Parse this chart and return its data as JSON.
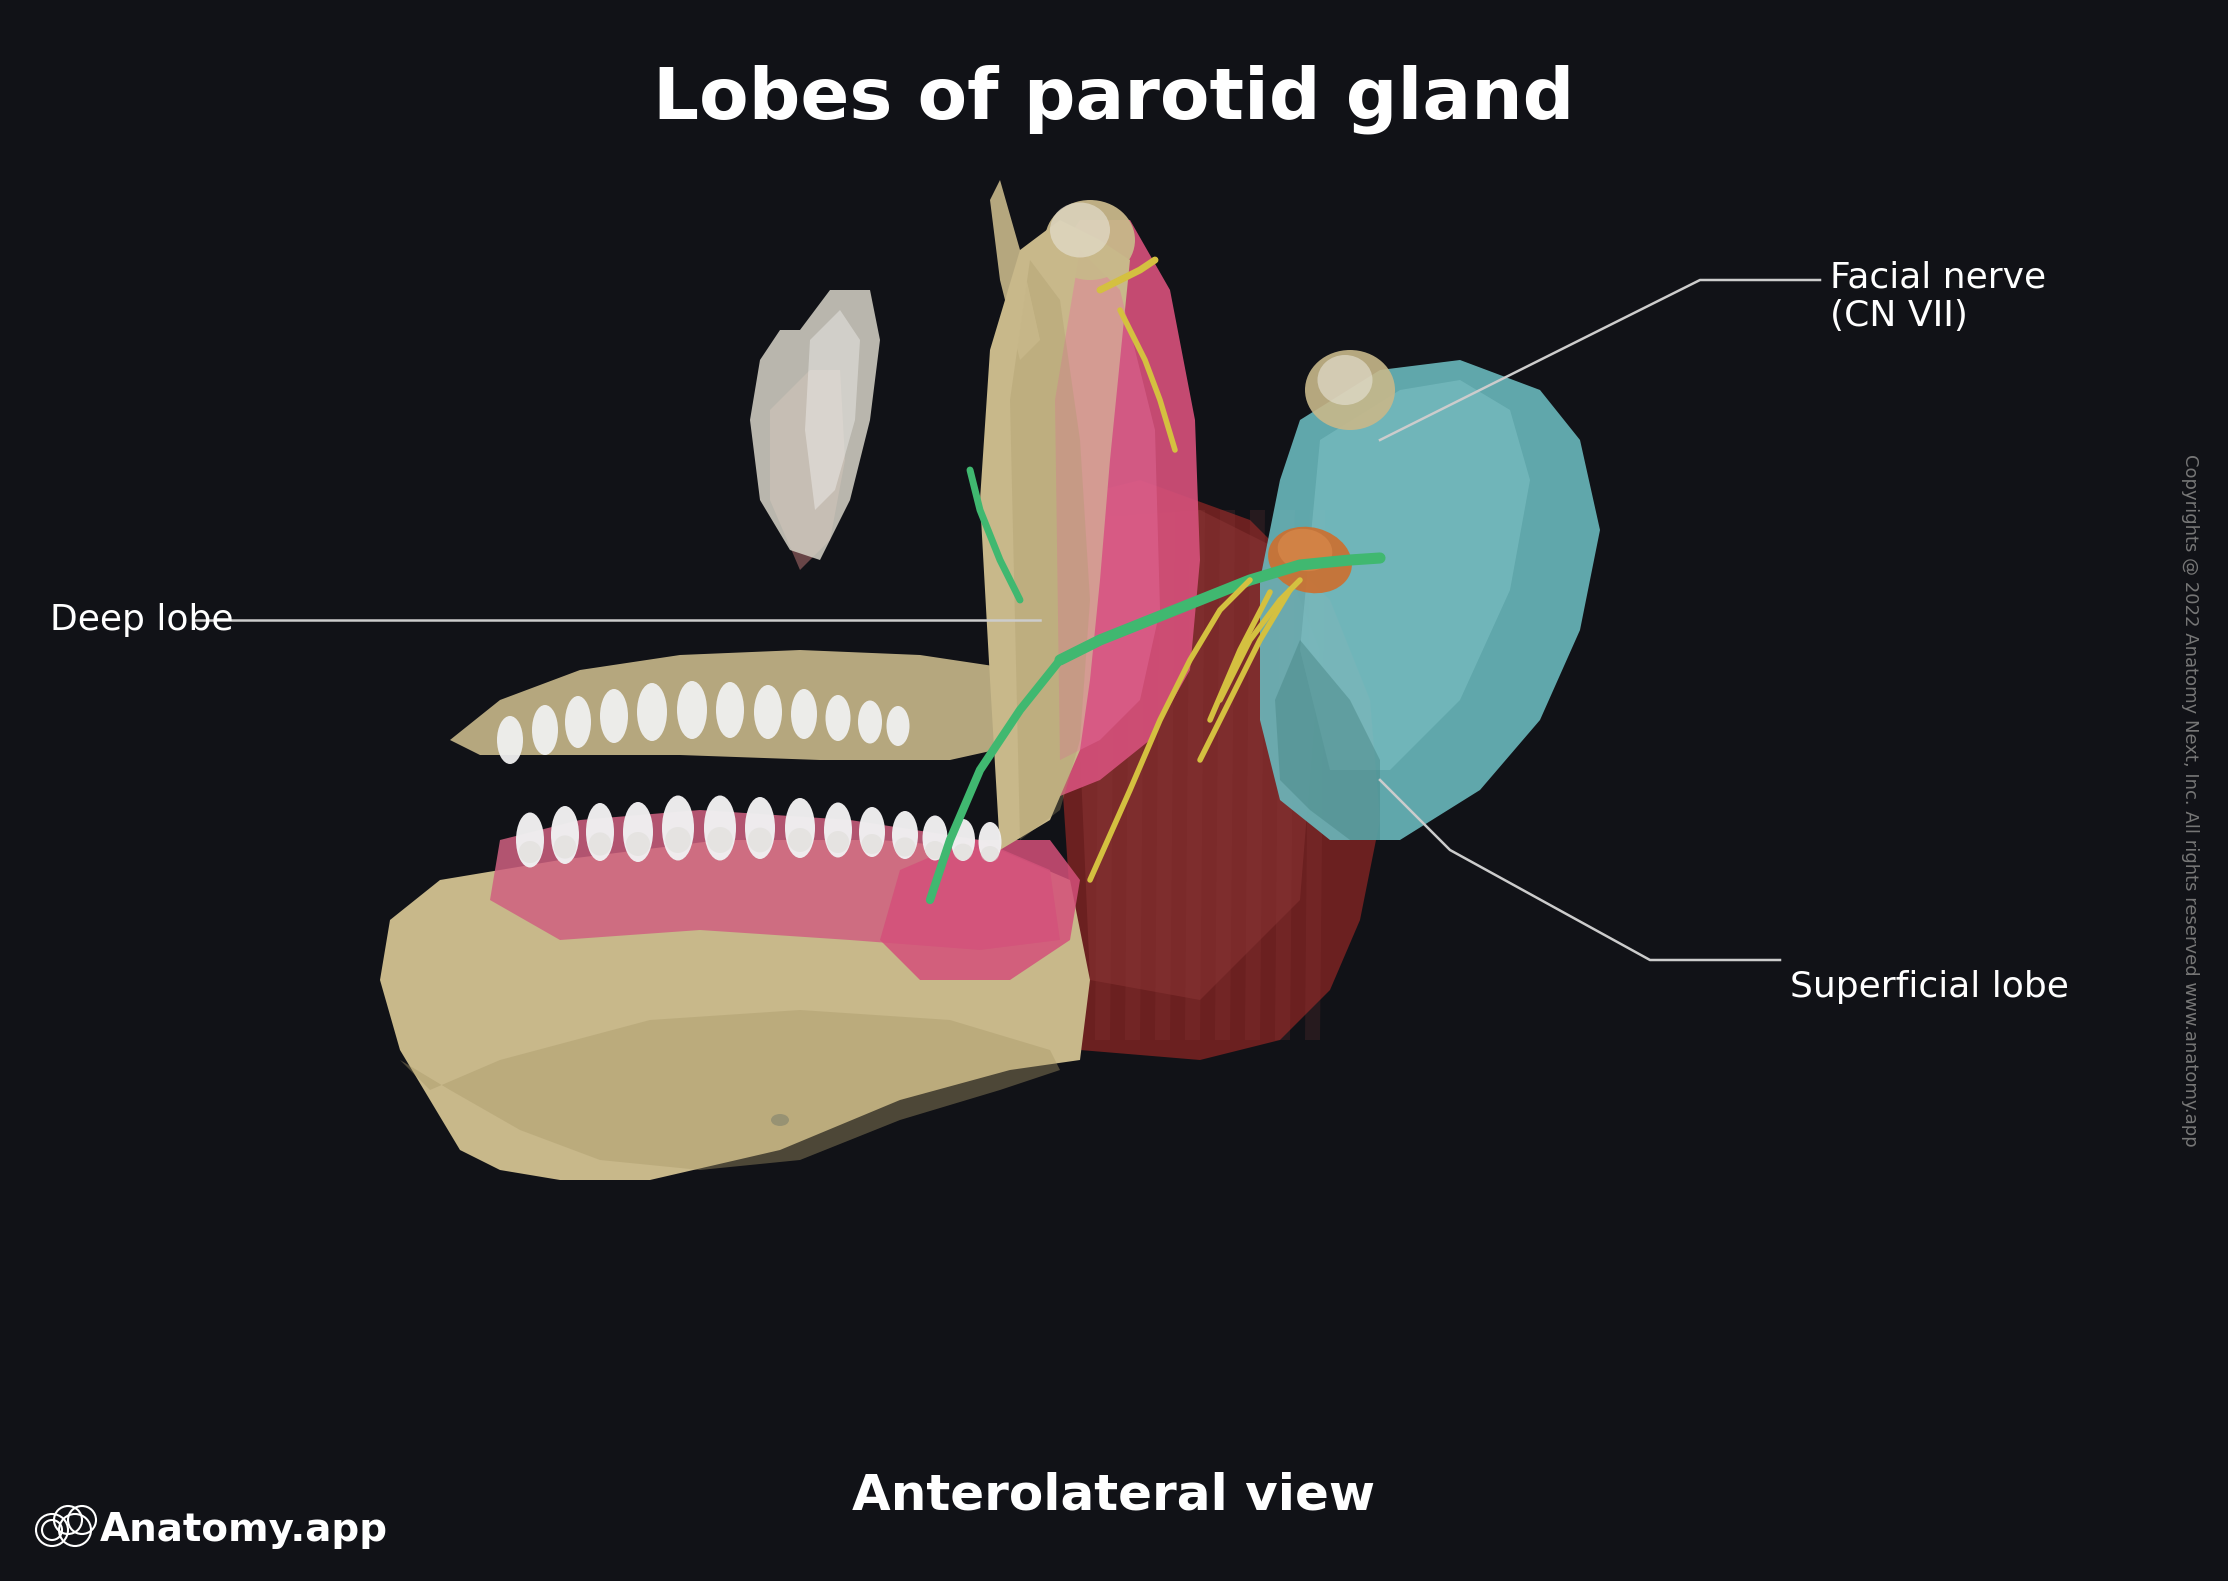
{
  "background_color": "#111217",
  "title": "Lobes of parotid gland",
  "title_color": "#ffffff",
  "title_fontsize": 52,
  "subtitle": "Anterolateral view",
  "subtitle_color": "#ffffff",
  "subtitle_fontsize": 36,
  "brand_text": "Anatomy.app",
  "brand_color": "#ffffff",
  "brand_fontsize": 28,
  "copyright_text": "Copyrights @ 2022 Anatomy Next, Inc. All rights reserved www.anatomy.app",
  "copyright_color": "#777777",
  "copyright_fontsize": 13,
  "label_facial_nerve": "Facial nerve\n(CN VII)",
  "label_deep_lobe": "Deep lobe",
  "label_superficial_lobe": "Superficial lobe",
  "label_fontsize": 26,
  "label_color": "#ffffff",
  "line_color": "#cccccc",
  "fig_width": 22.28,
  "fig_height": 15.81,
  "colors": {
    "mandible": "#c8b88a",
    "mandible_dark": "#a89868",
    "deep_lobe_pink": "#d4507a",
    "deep_lobe_light": "#e870a0",
    "tongue_pink": "#d06080",
    "muscle_dark": "#6b2020",
    "muscle_mid": "#8b3535",
    "muscle_light": "#a04848",
    "superficial_lobe_teal": "#6ab8bc",
    "superficial_lobe_light": "#90d0d4",
    "bone_white": "#d8d4c8",
    "bone_light": "#e8e4d8",
    "nerve_green": "#40b870",
    "nerve_yellow": "#d4c040",
    "nerve_orange": "#c87828",
    "gum_pink": "#cc8888",
    "orange_node": "#cc7030",
    "ramus_bone": "#c0b080"
  }
}
